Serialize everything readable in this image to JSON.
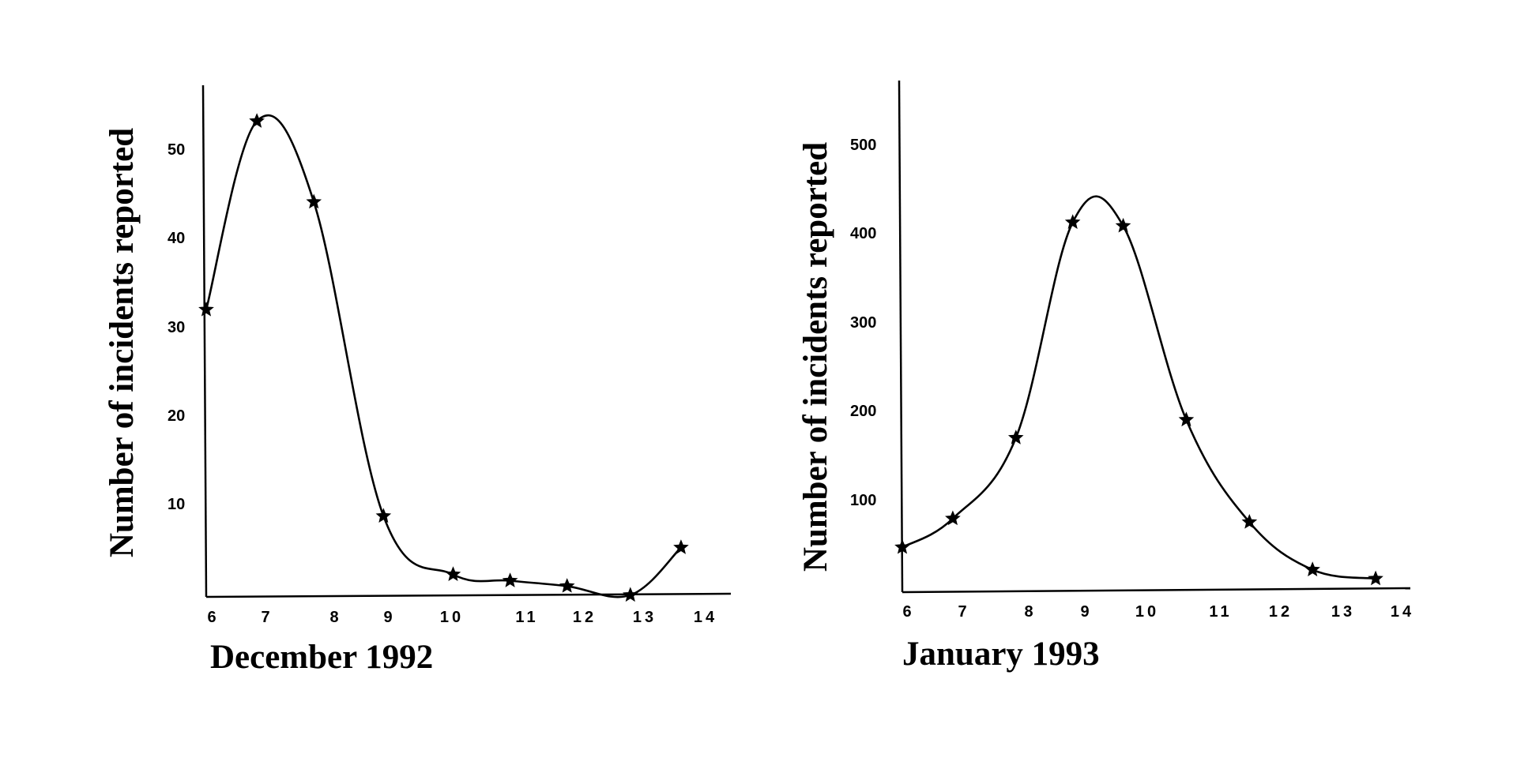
{
  "chart_data": [
    {
      "type": "line",
      "marker": "star",
      "color": "#000000",
      "grid": false,
      "xlabel": "December 1992",
      "ylabel": "Number of incidents reported",
      "x_ticks": [
        "6",
        "7",
        "8",
        "9",
        "10",
        "11",
        "12",
        "13",
        "14"
      ],
      "y_ticks": [
        "10",
        "20",
        "30",
        "40",
        "50"
      ],
      "xlim": [
        6,
        14
      ],
      "ylim": [
        0,
        57
      ],
      "series": [
        {
          "x": [
            6,
            6.8,
            7.7,
            8.8,
            9.9,
            10.8,
            11.7,
            12.7,
            13.5
          ],
          "y": [
            32,
            53,
            44,
            9,
            2.5,
            1.8,
            1.2,
            0.2,
            5.5
          ]
        }
      ]
    },
    {
      "type": "line",
      "marker": "star",
      "color": "#000000",
      "grid": false,
      "xlabel": "January 1993",
      "ylabel": "Number of incidents reported",
      "x_ticks": [
        "6",
        "7",
        "8",
        "9",
        "10",
        "11",
        "12",
        "13",
        "14"
      ],
      "y_ticks": [
        "100",
        "200",
        "300",
        "400",
        "500"
      ],
      "xlim": [
        6,
        14
      ],
      "ylim": [
        0,
        570
      ],
      "series": [
        {
          "x": [
            6,
            6.8,
            7.8,
            8.7,
            9.5,
            10.5,
            11.5,
            12.5,
            13.5
          ],
          "y": [
            50,
            82,
            172,
            412,
            408,
            192,
            78,
            25,
            15
          ]
        }
      ]
    }
  ]
}
